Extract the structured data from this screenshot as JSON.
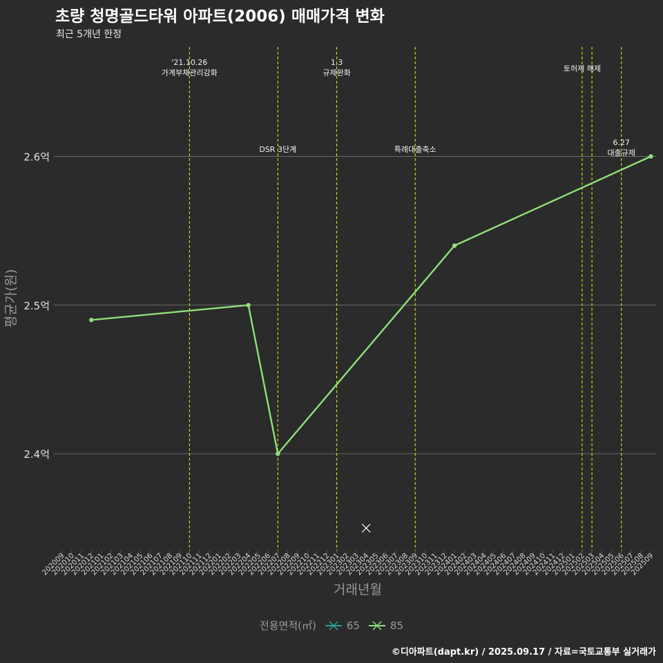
{
  "title": "초량 청명골드타워 아파트(2006) 매매가격 변화",
  "subtitle": "최근 5개년 한정",
  "caption": "©디아파트(dapt.kr) / 2025.09.17 / 자료=국토교통부 실거래가",
  "colors": {
    "background": "#2b2b2b",
    "grid": "#6a6a6a",
    "event_line": "#d4e21a",
    "series_65": "#2aa39a",
    "series_85": "#8fe07a"
  },
  "chart_data": {
    "type": "line",
    "title": "초량 청명골드타워 아파트(2006) 매매가격 변화",
    "subtitle": "최근 5개년 한정",
    "xlabel": "거래년월",
    "ylabel": "평균가(원)",
    "ylim": [
      2.335,
      2.675
    ],
    "y_ticks": [
      {
        "value": 2.4,
        "label": "2.4억"
      },
      {
        "value": 2.5,
        "label": "2.5억"
      },
      {
        "value": 2.6,
        "label": "2.6억"
      }
    ],
    "categories": [
      "202009",
      "202010",
      "202011",
      "202012",
      "202101",
      "202102",
      "202103",
      "202104",
      "202105",
      "202106",
      "202107",
      "202108",
      "202109",
      "202110",
      "202111",
      "202112",
      "202201",
      "202202",
      "202203",
      "202204",
      "202205",
      "202206",
      "202207",
      "202208",
      "202209",
      "202210",
      "202211",
      "202212",
      "202301",
      "202302",
      "202303",
      "202304",
      "202305",
      "202306",
      "202307",
      "202308",
      "202309",
      "202310",
      "202311",
      "202312",
      "202401",
      "202402",
      "202403",
      "202404",
      "202405",
      "202406",
      "202407",
      "202408",
      "202409",
      "202410",
      "202411",
      "202412",
      "202501",
      "202502",
      "202503",
      "202504",
      "202505",
      "202506",
      "202507",
      "202508",
      "202509"
    ],
    "legend_title": "전용면적(㎡)",
    "series": [
      {
        "name": "65",
        "marker": "cross",
        "points": [
          {
            "x": "202304",
            "y": 2.35
          }
        ]
      },
      {
        "name": "85",
        "marker": "circle",
        "points": [
          {
            "x": "202012",
            "y": 2.49
          },
          {
            "x": "202204",
            "y": 2.5
          },
          {
            "x": "202207",
            "y": 2.4
          },
          {
            "x": "202401",
            "y": 2.54
          },
          {
            "x": "202509",
            "y": 2.6
          }
        ]
      }
    ],
    "events": [
      {
        "x": "202110",
        "lines": [
          "'21.10.26",
          "가계부채관리강화"
        ],
        "row": "top"
      },
      {
        "x": "202207",
        "lines": [
          "DSR 3단계"
        ],
        "row": "mid"
      },
      {
        "x": "202301",
        "lines": [
          "1.3",
          "규제완화"
        ],
        "row": "top"
      },
      {
        "x": "202309",
        "lines": [
          "특례대출축소"
        ],
        "row": "mid"
      },
      {
        "x": "202502",
        "lines": [
          "토허제 해제"
        ],
        "row": "top"
      },
      {
        "x": "202503",
        "lines": [],
        "row": "top"
      },
      {
        "x": "202506",
        "lines": [
          "6.27",
          "대출규제"
        ],
        "row": "mid2"
      }
    ]
  }
}
